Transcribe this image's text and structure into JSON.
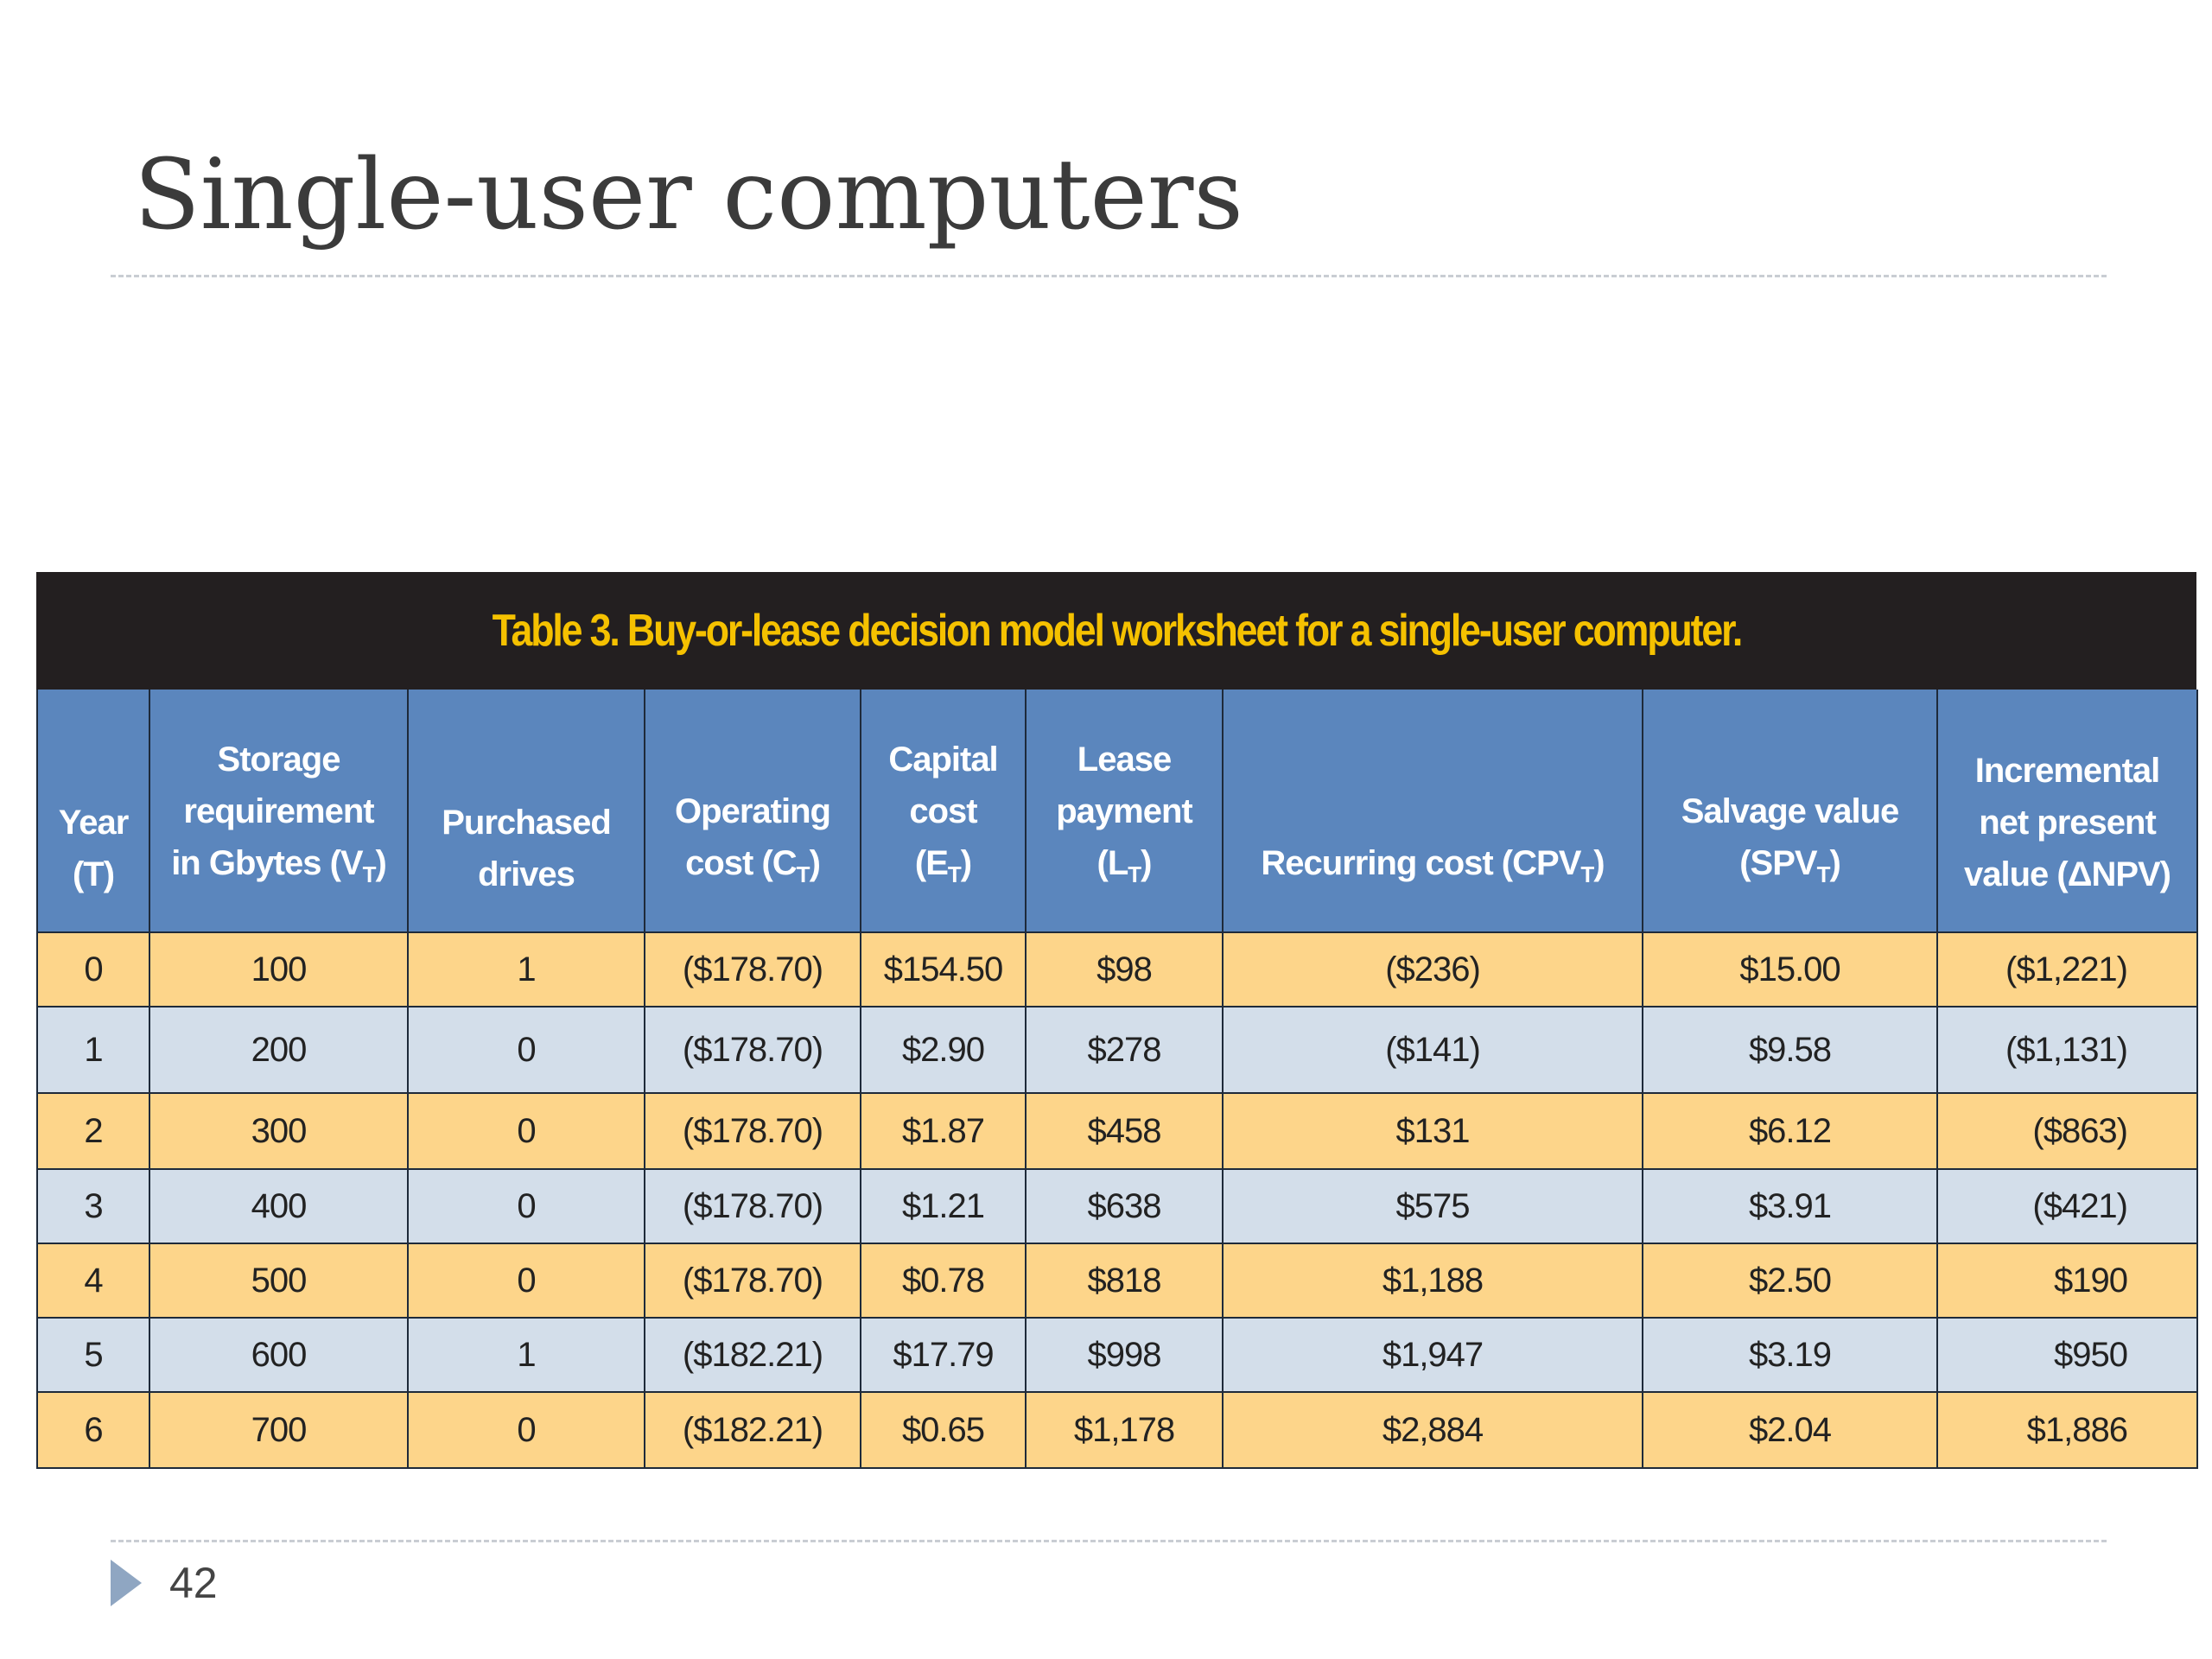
{
  "slide": {
    "title": "Single-user computers",
    "page_number": "42"
  },
  "table": {
    "caption": "Table 3. Buy-or-lease decision model worksheet for a single-user computer.",
    "headers": {
      "year": [
        "Year",
        "(T)"
      ],
      "storage": [
        "Storage",
        "requirement",
        "in Gbytes (V",
        "T",
        ")"
      ],
      "purchased": [
        "Purchased",
        "drives"
      ],
      "operating": [
        "Operating",
        "cost (C",
        "T",
        ")"
      ],
      "capital": [
        "Capital",
        "cost",
        "(E",
        "T",
        ")"
      ],
      "lease": [
        "Lease",
        "payment",
        "(L",
        "T",
        ")"
      ],
      "recurring": [
        "Recurring cost (CPV",
        "T",
        ")"
      ],
      "salvage": [
        "Salvage value",
        "(SPV",
        "T",
        ")"
      ],
      "incremental": [
        "Incremental",
        "net present",
        "value (ΔNPV)"
      ]
    },
    "rows": [
      {
        "year": "0",
        "storage": "100",
        "purchased": "1",
        "operating": "($178.70)",
        "capital": "$154.50",
        "lease": "$98",
        "recurring": "($236)",
        "salvage": "$15.00",
        "npv": "($1,221)"
      },
      {
        "year": "1",
        "storage": "200",
        "purchased": "0",
        "operating": "($178.70)",
        "capital": "$2.90",
        "lease": "$278",
        "recurring": "($141)",
        "salvage": "$9.58",
        "npv": "($1,131)"
      },
      {
        "year": "2",
        "storage": "300",
        "purchased": "0",
        "operating": "($178.70)",
        "capital": "$1.87",
        "lease": "$458",
        "recurring": "$131",
        "salvage": "$6.12",
        "npv": "($863)"
      },
      {
        "year": "3",
        "storage": "400",
        "purchased": "0",
        "operating": "($178.70)",
        "capital": "$1.21",
        "lease": "$638",
        "recurring": "$575",
        "salvage": "$3.91",
        "npv": "($421)"
      },
      {
        "year": "4",
        "storage": "500",
        "purchased": "0",
        "operating": "($178.70)",
        "capital": "$0.78",
        "lease": "$818",
        "recurring": "$1,188",
        "salvage": "$2.50",
        "npv": "$190"
      },
      {
        "year": "5",
        "storage": "600",
        "purchased": "1",
        "operating": "($182.21)",
        "capital": "$17.79",
        "lease": "$998",
        "recurring": "$1,947",
        "salvage": "$3.19",
        "npv": "$950"
      },
      {
        "year": "6",
        "storage": "700",
        "purchased": "0",
        "operating": "($182.21)",
        "capital": "$0.65",
        "lease": "$1,178",
        "recurring": "$2,884",
        "salvage": "$2.04",
        "npv": "$1,886"
      }
    ]
  },
  "colors": {
    "caption_bg": "#231f20",
    "caption_text": "#f5c100",
    "header_bg": "#5b86bd",
    "row_odd": "#fdd58a",
    "row_even": "#d3deea"
  }
}
